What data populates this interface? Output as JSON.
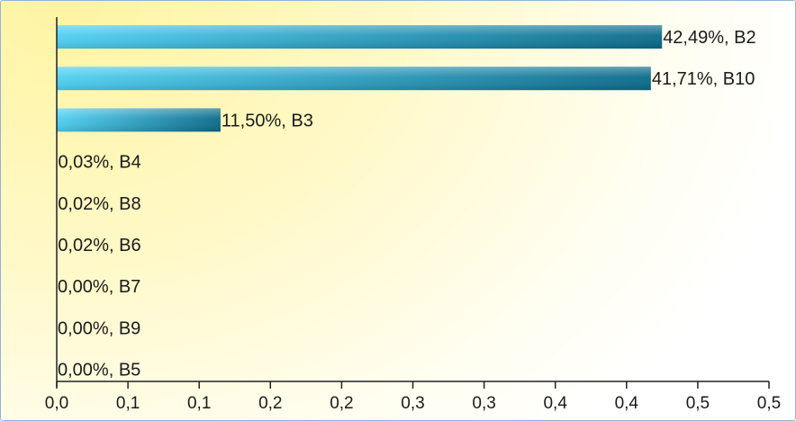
{
  "chart_data": {
    "type": "bar",
    "orientation": "horizontal",
    "title": "",
    "xlabel": "",
    "ylabel": "",
    "xlim": [
      0,
      0.5
    ],
    "grid": false,
    "legend": "none",
    "colors": {
      "bar_light": "#4fd0f2",
      "bar_dark": "#0a6a8a",
      "background": "#fff6b0"
    },
    "categories": [
      "B2",
      "B10",
      "B3",
      "B4",
      "B8",
      "B6",
      "B7",
      "B9",
      "B5"
    ],
    "values": [
      0.4249,
      0.4171,
      0.115,
      0.0003,
      0.0002,
      0.0002,
      0.0,
      0.0,
      0.0
    ],
    "data_labels": [
      "42,49%, B2",
      "41,71%, B10",
      "11,50%, B3",
      "0,03%, B4",
      "0,02%, B8",
      "0,02%, B6",
      "0,00%, B7",
      "0,00%, B9",
      "0,00%, B5"
    ],
    "x_ticks": [
      0,
      0.05,
      0.1,
      0.15,
      0.2,
      0.25,
      0.3,
      0.35,
      0.4,
      0.45,
      0.5
    ],
    "x_tick_labels": [
      "0,0",
      "0,1",
      "0,1",
      "0,2",
      "0,2",
      "0,3",
      "0,3",
      "0,4",
      "0,4",
      "0,5",
      "0,5"
    ]
  }
}
